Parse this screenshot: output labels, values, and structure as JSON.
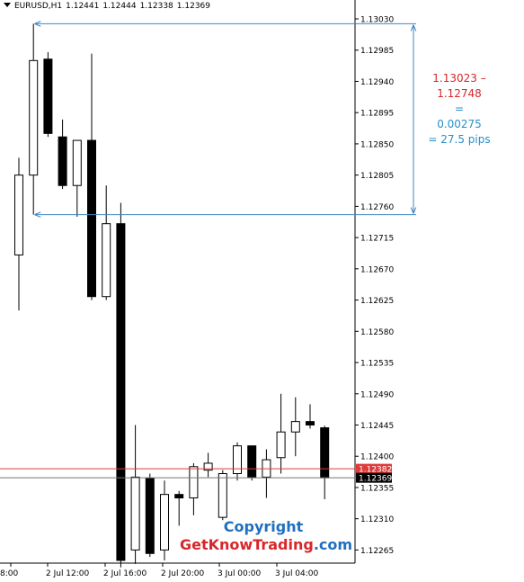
{
  "header": {
    "symbol": "EURUSD,H1",
    "open": "1.12441",
    "high": "1.12444",
    "low": "1.12338",
    "close": "1.12369"
  },
  "chart_data": {
    "type": "candlestick",
    "price_axis": [
      "1.13030",
      "1.12985",
      "1.12940",
      "1.12895",
      "1.12850",
      "1.12805",
      "1.12760",
      "1.12715",
      "1.12670",
      "1.12625",
      "1.12580",
      "1.12535",
      "1.12490",
      "1.12445",
      "1.12400",
      "1.12355",
      "1.12310",
      "1.12265"
    ],
    "time_axis": [
      "8:00",
      "2 Jul 12:00",
      "2 Jul 16:00",
      "2 Jul 20:00",
      "3 Jul 00:00",
      "3 Jul 04:00"
    ],
    "ylim": [
      1.1224,
      1.13055
    ],
    "candles": [
      {
        "o": 1.1269,
        "h": 1.1283,
        "l": 1.1261,
        "c": 1.12805
      },
      {
        "o": 1.12805,
        "h": 1.13023,
        "l": 1.12748,
        "c": 1.1297
      },
      {
        "o": 1.12972,
        "h": 1.12982,
        "l": 1.1286,
        "c": 1.12865
      },
      {
        "o": 1.1286,
        "h": 1.12885,
        "l": 1.12785,
        "c": 1.1279
      },
      {
        "o": 1.1279,
        "h": 1.12855,
        "l": 1.12745,
        "c": 1.12855
      },
      {
        "o": 1.12855,
        "h": 1.1298,
        "l": 1.12625,
        "c": 1.1263
      },
      {
        "o": 1.1263,
        "h": 1.1279,
        "l": 1.12625,
        "c": 1.12735
      },
      {
        "o": 1.12735,
        "h": 1.12765,
        "l": 1.1224,
        "c": 1.1225
      },
      {
        "o": 1.12265,
        "h": 1.12445,
        "l": 1.12245,
        "c": 1.1237
      },
      {
        "o": 1.12368,
        "h": 1.12375,
        "l": 1.12255,
        "c": 1.1226
      },
      {
        "o": 1.12265,
        "h": 1.12365,
        "l": 1.1225,
        "c": 1.12345
      },
      {
        "o": 1.12345,
        "h": 1.1235,
        "l": 1.123,
        "c": 1.1234
      },
      {
        "o": 1.1234,
        "h": 1.1239,
        "l": 1.12315,
        "c": 1.12385
      },
      {
        "o": 1.1238,
        "h": 1.12405,
        "l": 1.1237,
        "c": 1.1239
      },
      {
        "o": 1.12312,
        "h": 1.1238,
        "l": 1.12308,
        "c": 1.12375
      },
      {
        "o": 1.12375,
        "h": 1.1242,
        "l": 1.12365,
        "c": 1.12415
      },
      {
        "o": 1.12415,
        "h": 1.12415,
        "l": 1.12365,
        "c": 1.1237
      },
      {
        "o": 1.1237,
        "h": 1.1241,
        "l": 1.1234,
        "c": 1.12395
      },
      {
        "o": 1.12398,
        "h": 1.1249,
        "l": 1.12375,
        "c": 1.12435
      },
      {
        "o": 1.12435,
        "h": 1.12485,
        "l": 1.124,
        "c": 1.1245
      },
      {
        "o": 1.1245,
        "h": 1.12475,
        "l": 1.1244,
        "c": 1.12445
      },
      {
        "o": 1.12441,
        "h": 1.12444,
        "l": 1.12338,
        "c": 1.12369
      }
    ],
    "bid_price": "1.12382",
    "last_price": "1.12369",
    "range_high": 1.13023,
    "range_low": 1.12748
  },
  "annotation": {
    "line1": "1.13023 – 1.12748",
    "line2": "=",
    "line3": "0.00275",
    "line4": "= 27.5 pips"
  },
  "copyright": {
    "line1": "Copyright",
    "line2_main": "GetKnowTrading",
    "line2_dom": ".com"
  },
  "colors": {
    "bid_line": "#e03a3a",
    "last_line": "#777777",
    "measure_arrow": "#3f84c4"
  }
}
